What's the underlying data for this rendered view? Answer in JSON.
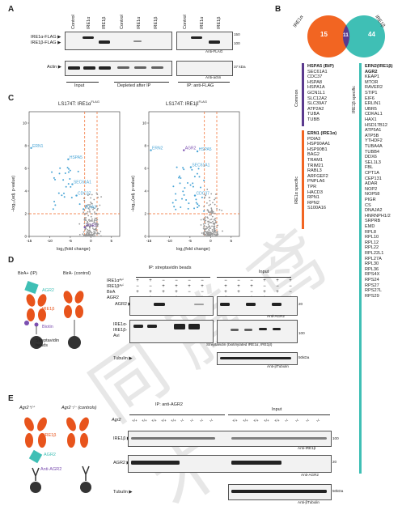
{
  "A": {
    "letter": "A",
    "lanes": [
      "Control",
      "IRE1α",
      "IRE1β",
      "Control",
      "IRE1α",
      "IRE1β",
      "Control",
      "IRE1α",
      "IRE1β"
    ],
    "row_flag": [
      "IRE1α-FLAG ▶",
      "IRE1β-FLAG ▶"
    ],
    "row_actin": "Actin ▶",
    "mw_flag": [
      "150",
      "100"
    ],
    "mw_actin": "37 kDa",
    "anti_flag": "Anti-FLAG",
    "anti_actin": "Anti-actin",
    "groups": [
      "Input",
      "Depleted after IP",
      "IP: anti-FLAG"
    ]
  },
  "B": {
    "letter": "B",
    "set_left": "IRE1α",
    "set_right": "IRE1β",
    "n_left": "15",
    "n_common": "11",
    "n_right": "44",
    "label_common": "Common",
    "label_alpha": "IRE1α specific",
    "label_beta": "IRE1β specific",
    "common": [
      "HSPA5 (BiP)",
      "SEC61A1",
      "CDC37",
      "HSPA8",
      "HSPA1A",
      "GCN1L1",
      "SLC12A2",
      "SLC39A7",
      "ATP2A2",
      "TUBA",
      "TUBB"
    ],
    "alpha": [
      "ERN1 (IRE1α)",
      "PDIA3",
      "HSP90AA1",
      "HSP90B1",
      "BAG2",
      "TRAM1",
      "TRIM21",
      "RABL3",
      "ARFGEF2",
      "PNPLA6",
      "TPR",
      "HACD3",
      "RPN1",
      "RPN2",
      "S100A16"
    ],
    "beta": [
      "ERN2(IRE1β)",
      "AGR2",
      "KEAP1",
      "MTOR",
      "RAVER2",
      "STIP1",
      "EIF6",
      "ERLIN1",
      "UBR5",
      "CDKAL1",
      "HAX1",
      "HSD17B12",
      "ATP5A1",
      "ATP5B",
      "YTHDF2",
      "TUBA4A",
      "TUBB4",
      "DDX6",
      "SEL1L3",
      "FBL",
      "CPT1A",
      "CEP131",
      "ADAR",
      "NOP2",
      "NOP58",
      "PIGR",
      "CS",
      "DNAJA2",
      "HNRNPH1/2",
      "SRPRB",
      "EMD",
      "RPL8",
      "RPL10",
      "RPL12",
      "RPL22",
      "RPL22L1",
      "RPL27A",
      "RPL30",
      "RPL36",
      "RPS4X",
      "RPS24",
      "RPS27",
      "RPS27L",
      "RPS29"
    ],
    "colors": {
      "alpha": "#f26522",
      "beta": "#3fbfb5",
      "common": "#5b3a8e"
    }
  },
  "C": {
    "letter": "C",
    "left_title": "LS174T: IRE1α",
    "left_sup": "FLAG",
    "right_title": "LS174T: IRE1β",
    "right_sup": "FLAG",
    "ylabel": "−log₁₀(adj. p-value)",
    "xlabel": "log₂(fold change)",
    "xticks": [
      "-15",
      "-10",
      "-5",
      "0",
      "5"
    ],
    "yticks": [
      "0",
      "2",
      "4",
      "6",
      "8",
      "10"
    ],
    "left_labels": [
      "ERN1",
      "HSPA5",
      "SEC61A1",
      "CDC37",
      "PDIA3",
      "AGR2"
    ],
    "right_labels": [
      "ERN2",
      "AGR2",
      "HSPA5",
      "SEC61A1",
      "CDC37"
    ]
  },
  "D": {
    "letter": "D",
    "diag_left": "BirA+ (IP)",
    "diag_right": "BirA- (control)",
    "d_agr2": "AGR2",
    "d_ire1b": "IRE1β",
    "d_biotin": "Biotin",
    "d_beads": "Streptavidin beads",
    "ip_header": "IP: streptavidin beads",
    "input_header": "Input",
    "row_labels": [
      "IRE1αᴬᵛⁱ",
      "IRE1βᴬᵛⁱ",
      "BirA",
      "AGR2"
    ],
    "pm_ip": [
      [
        "+",
        "+",
        "−",
        "−",
        "−",
        "−"
      ],
      [
        "−",
        "−",
        "+",
        "+",
        "+",
        "+"
      ],
      [
        "+",
        "+",
        "+",
        "+",
        "−",
        "−"
      ],
      [
        "−",
        "+",
        "−",
        "+",
        "−",
        "+"
      ]
    ],
    "pm_input": [
      [
        "−",
        "−",
        "−",
        "+",
        "+",
        "+"
      ],
      [
        "+",
        "+",
        "+",
        "−",
        "−",
        "−"
      ],
      [
        "+",
        "+",
        "−",
        "+",
        "+",
        "−"
      ],
      [
        "+",
        "−",
        "+",
        "+",
        "−",
        "+"
      ]
    ],
    "blot_agr2": "AGR2 ▶",
    "blot_ire1": [
      "IRE1α-",
      "IRE1β-",
      "Avi"
    ],
    "blot_tubulin": "Tubulin ▶",
    "mw_agr2": "20",
    "mw_ire1": "100",
    "mw_tub": "50kDa",
    "anti_agr2": "Anti-AGR2",
    "anti_strep": "Streptavidin (biotinylated IRE1α, IRE1β)",
    "anti_tub": "Anti-βTubulin"
  },
  "E": {
    "letter": "E",
    "diag_left": "Agr2⁺/⁺",
    "diag_right": "Agr2⁻/⁻ (controls)",
    "d_ire1b": "IRE1β",
    "d_agr2": "AGR2",
    "d_anti": "Anti-AGR2",
    "ip_header": "IP: anti-AGR2",
    "input_header": "Input",
    "agr2_row": "Agr2",
    "geno_ip": [
      "+/+",
      "+/+",
      "+/+",
      "+/+",
      "+/+",
      "-/-",
      "-/-",
      "-/-",
      "-/-"
    ],
    "geno_input": [
      "+/+",
      "+/+",
      "+/+",
      "+/+",
      "+/+",
      "-/-",
      "-/-",
      "-/-",
      "-/-"
    ],
    "blot_ire1b": "IRE1β ▶",
    "blot_agr2": "AGR2 ▶",
    "blot_tub": "Tubulin ▶",
    "mw_ire1b": "100",
    "mw_agr2": "20",
    "mw_tub": "50kDa",
    "anti_ire1b": "Anti-IRE1β",
    "anti_agr2": "Anti-AGR2",
    "anti_tub": "Anti-βTubulin"
  }
}
